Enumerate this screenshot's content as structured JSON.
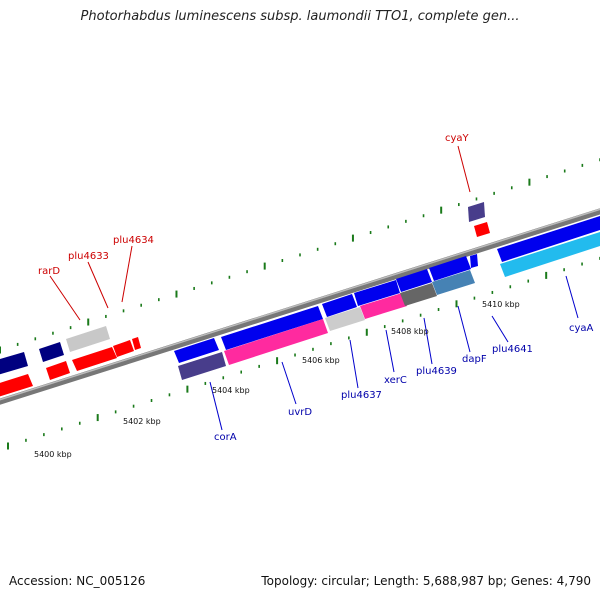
{
  "header": {
    "title": "Photorhabdus luminescens subsp. laumondii TTO1, complete gen..."
  },
  "footer": {
    "accession": "Accession: NC_005126",
    "summary": "Topology: circular; Length: 5,688,987 bp; Genes: 4,790"
  },
  "colors": {
    "forward_strand": "#0000ee",
    "forward_dark": "#000080",
    "reverse_strand": "#ff0000",
    "backbone": "#777777",
    "tick": "#1a7a1a",
    "label_forward": "#0000aa",
    "label_reverse": "#cc0000",
    "pink": "#ff2a9f",
    "gray_light": "#cccccc",
    "gray_dark": "#666666",
    "steel_blue": "#4682b4",
    "cyan": "#22bbee",
    "slate": "#483d8b"
  },
  "scale_labels": [
    "5400 kbp",
    "5402 kbp",
    "5404 kbp",
    "5406 kbp",
    "5408 kbp",
    "5410 kbp"
  ],
  "gene_labels": [
    {
      "name": "cyaY",
      "strand": "reverse"
    },
    {
      "name": "rarD",
      "strand": "reverse"
    },
    {
      "name": "plu4633",
      "strand": "reverse"
    },
    {
      "name": "plu4634",
      "strand": "reverse"
    },
    {
      "name": "corA",
      "strand": "forward"
    },
    {
      "name": "uvrD",
      "strand": "forward"
    },
    {
      "name": "plu4637",
      "strand": "forward"
    },
    {
      "name": "xerC",
      "strand": "forward"
    },
    {
      "name": "plu4639",
      "strand": "forward"
    },
    {
      "name": "dapF",
      "strand": "forward"
    },
    {
      "name": "plu4641",
      "strand": "forward"
    },
    {
      "name": "cyaA",
      "strand": "forward"
    }
  ]
}
